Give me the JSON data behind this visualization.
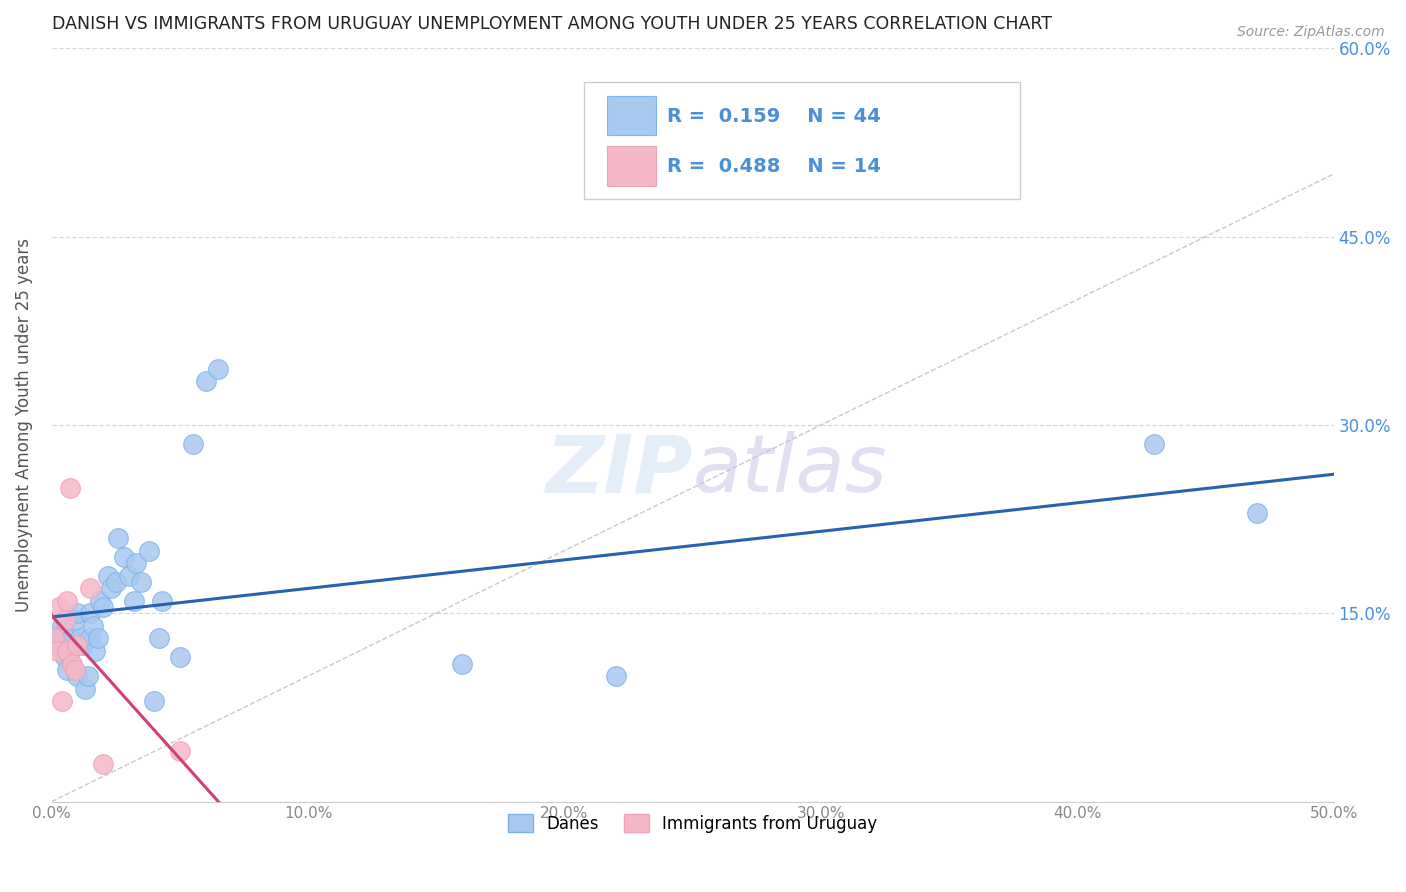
{
  "title": "DANISH VS IMMIGRANTS FROM URUGUAY UNEMPLOYMENT AMONG YOUTH UNDER 25 YEARS CORRELATION CHART",
  "source": "Source: ZipAtlas.com",
  "ylabel": "Unemployment Among Youth under 25 years",
  "xlim": [
    0.0,
    0.5
  ],
  "ylim": [
    0.0,
    0.6
  ],
  "danes_x": [
    0.001,
    0.002,
    0.003,
    0.004,
    0.005,
    0.005,
    0.006,
    0.007,
    0.008,
    0.009,
    0.01,
    0.01,
    0.011,
    0.012,
    0.013,
    0.014,
    0.015,
    0.015,
    0.016,
    0.017,
    0.018,
    0.019,
    0.02,
    0.022,
    0.023,
    0.025,
    0.026,
    0.028,
    0.03,
    0.032,
    0.033,
    0.035,
    0.038,
    0.04,
    0.042,
    0.043,
    0.05,
    0.055,
    0.06,
    0.065,
    0.16,
    0.22,
    0.43,
    0.47
  ],
  "danes_y": [
    0.13,
    0.125,
    0.13,
    0.14,
    0.115,
    0.135,
    0.105,
    0.12,
    0.13,
    0.145,
    0.15,
    0.1,
    0.13,
    0.125,
    0.09,
    0.1,
    0.15,
    0.13,
    0.14,
    0.12,
    0.13,
    0.16,
    0.155,
    0.18,
    0.17,
    0.175,
    0.21,
    0.195,
    0.18,
    0.16,
    0.19,
    0.175,
    0.2,
    0.08,
    0.13,
    0.16,
    0.115,
    0.285,
    0.335,
    0.345,
    0.11,
    0.1,
    0.285,
    0.23
  ],
  "uruguay_x": [
    0.001,
    0.002,
    0.003,
    0.004,
    0.005,
    0.006,
    0.006,
    0.007,
    0.008,
    0.009,
    0.01,
    0.015,
    0.02,
    0.05
  ],
  "uruguay_y": [
    0.13,
    0.12,
    0.155,
    0.08,
    0.145,
    0.12,
    0.16,
    0.25,
    0.11,
    0.105,
    0.125,
    0.17,
    0.03,
    0.04
  ],
  "danes_color": "#a8c8f0",
  "uruguay_color": "#f5b8c8",
  "danes_edge_color": "#7eb3e8",
  "uruguay_edge_color": "#f0a0b8",
  "danes_line_color": "#2563b0",
  "uruguay_line_color": "#d04070",
  "diagonal_color": "#c8c8c8",
  "danes_R": 0.159,
  "danes_N": 44,
  "uruguay_R": 0.488,
  "uruguay_N": 14,
  "legend_label_danes": "Danes",
  "legend_label_uruguay": "Immigrants from Uruguay",
  "watermark_zip": "ZIP",
  "watermark_atlas": "atlas",
  "background_color": "#ffffff",
  "grid_color": "#d8d8d8",
  "ytick_color": "#4a90d9",
  "xtick_color": "#888888",
  "ylabel_color": "#555555",
  "title_color": "#222222"
}
